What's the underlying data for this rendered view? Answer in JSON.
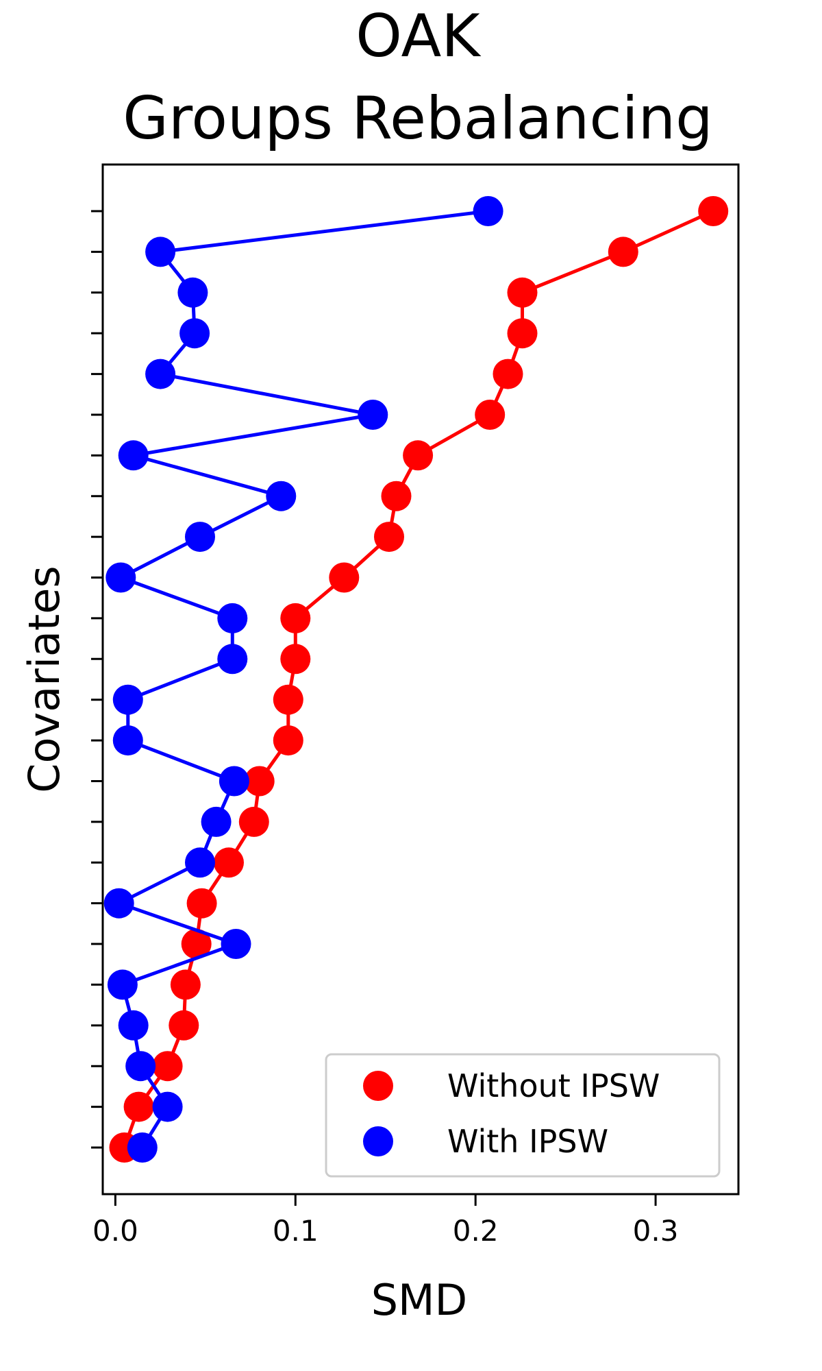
{
  "chart_data": {
    "type": "line",
    "title": "OAK",
    "subtitle": "Groups Rebalancing",
    "xlabel": "SMD",
    "ylabel": "Covariates",
    "xlim": [
      -0.007,
      0.346
    ],
    "xticks": [
      "0.0",
      "0.1",
      "0.2",
      "0.3"
    ],
    "xtick_values": [
      0.0,
      0.1,
      0.2,
      0.3
    ],
    "y_count": 24,
    "grid": false,
    "legend_position": "bottom-right",
    "series": [
      {
        "name": "Without IPSW",
        "color": "#ff0000",
        "values": [
          0.005,
          0.013,
          0.029,
          0.038,
          0.039,
          0.045,
          0.048,
          0.063,
          0.077,
          0.08,
          0.096,
          0.096,
          0.1,
          0.1,
          0.127,
          0.152,
          0.156,
          0.168,
          0.208,
          0.218,
          0.226,
          0.226,
          0.282,
          0.332
        ]
      },
      {
        "name": "With IPSW",
        "color": "#0000ff",
        "values": [
          0.015,
          0.029,
          0.014,
          0.01,
          0.004,
          0.067,
          0.002,
          0.047,
          0.056,
          0.066,
          0.007,
          0.007,
          0.065,
          0.065,
          0.003,
          0.047,
          0.092,
          0.01,
          0.143,
          0.025,
          0.044,
          0.043,
          0.025,
          0.207
        ]
      }
    ]
  }
}
